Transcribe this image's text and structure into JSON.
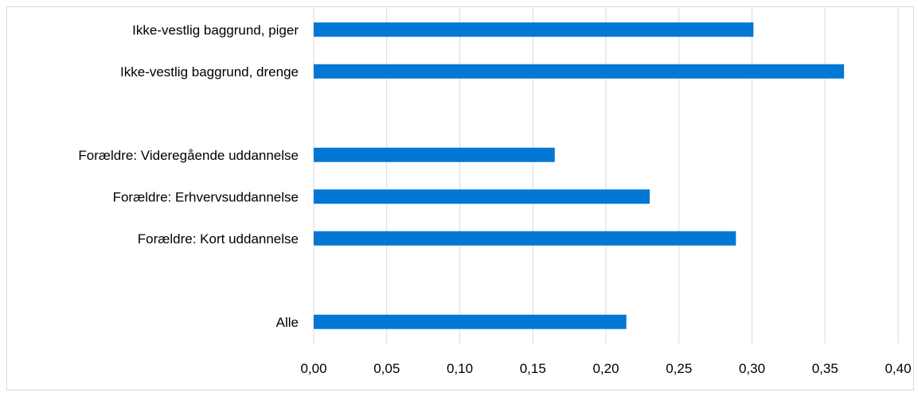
{
  "chart_data": {
    "type": "bar",
    "orientation": "horizontal",
    "title": "",
    "xlabel": "",
    "ylabel": "",
    "categories": [
      "Ikke-vestlig baggrund, piger",
      "Ikke-vestlig baggrund, drenge",
      "",
      "Forældre: Videregående uddannelse",
      "Forældre: Erhvervsuddannelse",
      "Forældre: Kort uddannelse",
      "",
      "Alle"
    ],
    "values": [
      0.301,
      0.363,
      null,
      0.165,
      0.23,
      0.289,
      null,
      0.214
    ],
    "xlim": [
      0,
      0.4
    ],
    "xticks": [
      "0,00",
      "0,05",
      "0,10",
      "0,15",
      "0,20",
      "0,25",
      "0,30",
      "0,35",
      "0,40"
    ],
    "grid": "vertical",
    "bar_color": "#0277D4",
    "grid_color": "#d9d9d9"
  }
}
